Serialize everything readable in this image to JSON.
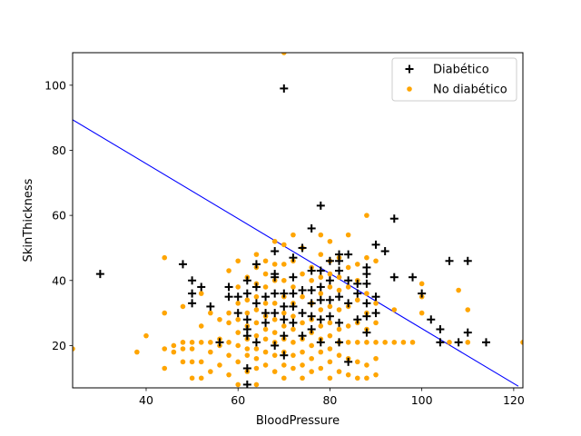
{
  "chart_data": {
    "type": "scatter",
    "title": "",
    "xlabel": "BloodPressure",
    "ylabel": "SkinThickness",
    "xlim": [
      24,
      122
    ],
    "ylim": [
      7,
      110
    ],
    "x_ticks": [
      40,
      60,
      80,
      100,
      120
    ],
    "y_ticks": [
      20,
      40,
      60,
      80,
      100
    ],
    "grid": false,
    "legend_position": "top-right",
    "decision_line": {
      "color": "#0000ff",
      "points": [
        [
          24,
          89.4
        ],
        [
          121,
          7.5
        ]
      ]
    },
    "series": [
      {
        "name": "Diabético",
        "marker": "plus",
        "color": "#000000",
        "points": [
          [
            30,
            42
          ],
          [
            48,
            45
          ],
          [
            50,
            40
          ],
          [
            50,
            36
          ],
          [
            50,
            33
          ],
          [
            52,
            38
          ],
          [
            54,
            32
          ],
          [
            56,
            21
          ],
          [
            58,
            38
          ],
          [
            58,
            35
          ],
          [
            60,
            30
          ],
          [
            60,
            35
          ],
          [
            62,
            40
          ],
          [
            62,
            36
          ],
          [
            62,
            28
          ],
          [
            62,
            25
          ],
          [
            62,
            23
          ],
          [
            62,
            13
          ],
          [
            62,
            8
          ],
          [
            64,
            45
          ],
          [
            64,
            38
          ],
          [
            64,
            33
          ],
          [
            64,
            21
          ],
          [
            66,
            35
          ],
          [
            66,
            30
          ],
          [
            66,
            27
          ],
          [
            68,
            49
          ],
          [
            68,
            42
          ],
          [
            68,
            41
          ],
          [
            68,
            36
          ],
          [
            68,
            30
          ],
          [
            68,
            20
          ],
          [
            70,
            99
          ],
          [
            70,
            36
          ],
          [
            70,
            32
          ],
          [
            70,
            28
          ],
          [
            70,
            23
          ],
          [
            70,
            17
          ],
          [
            72,
            47
          ],
          [
            72,
            41
          ],
          [
            72,
            36
          ],
          [
            72,
            32
          ],
          [
            72,
            27
          ],
          [
            74,
            50
          ],
          [
            74,
            37
          ],
          [
            74,
            30
          ],
          [
            74,
            23
          ],
          [
            76,
            56
          ],
          [
            76,
            43
          ],
          [
            76,
            37
          ],
          [
            76,
            33
          ],
          [
            76,
            29
          ],
          [
            76,
            25
          ],
          [
            78,
            63
          ],
          [
            78,
            43
          ],
          [
            78,
            38
          ],
          [
            78,
            34
          ],
          [
            78,
            28
          ],
          [
            78,
            21
          ],
          [
            80,
            46
          ],
          [
            80,
            40
          ],
          [
            80,
            34
          ],
          [
            80,
            29
          ],
          [
            82,
            48
          ],
          [
            82,
            46
          ],
          [
            82,
            43
          ],
          [
            82,
            35
          ],
          [
            82,
            27
          ],
          [
            82,
            21
          ],
          [
            84,
            48
          ],
          [
            84,
            40
          ],
          [
            84,
            33
          ],
          [
            84,
            15
          ],
          [
            86,
            39
          ],
          [
            86,
            36
          ],
          [
            86,
            28
          ],
          [
            88,
            44
          ],
          [
            88,
            42
          ],
          [
            88,
            39
          ],
          [
            88,
            33
          ],
          [
            88,
            29
          ],
          [
            88,
            24
          ],
          [
            90,
            51
          ],
          [
            90,
            35
          ],
          [
            90,
            30
          ],
          [
            92,
            49
          ],
          [
            94,
            59
          ],
          [
            94,
            41
          ],
          [
            98,
            41
          ],
          [
            100,
            36
          ],
          [
            102,
            28
          ],
          [
            104,
            25
          ],
          [
            104,
            21
          ],
          [
            106,
            46
          ],
          [
            108,
            21
          ],
          [
            110,
            46
          ],
          [
            110,
            24
          ],
          [
            114,
            21
          ]
        ]
      },
      {
        "name": "No diabético",
        "marker": "circle",
        "color": "#ffa500",
        "points": [
          [
            24,
            19
          ],
          [
            38,
            18
          ],
          [
            40,
            23
          ],
          [
            44,
            47
          ],
          [
            44,
            30
          ],
          [
            44,
            19
          ],
          [
            44,
            13
          ],
          [
            46,
            20
          ],
          [
            46,
            18
          ],
          [
            48,
            21
          ],
          [
            48,
            19
          ],
          [
            48,
            15
          ],
          [
            48,
            32
          ],
          [
            50,
            21
          ],
          [
            50,
            19
          ],
          [
            50,
            15
          ],
          [
            50,
            10
          ],
          [
            52,
            36
          ],
          [
            52,
            26
          ],
          [
            52,
            21
          ],
          [
            52,
            15
          ],
          [
            52,
            10
          ],
          [
            54,
            21
          ],
          [
            54,
            18
          ],
          [
            54,
            12
          ],
          [
            54,
            30
          ],
          [
            56,
            28
          ],
          [
            56,
            22
          ],
          [
            56,
            20
          ],
          [
            56,
            14
          ],
          [
            58,
            43
          ],
          [
            58,
            30
          ],
          [
            58,
            27
          ],
          [
            58,
            21
          ],
          [
            58,
            17
          ],
          [
            58,
            11
          ],
          [
            60,
            46
          ],
          [
            60,
            38
          ],
          [
            60,
            33
          ],
          [
            60,
            28
          ],
          [
            60,
            24
          ],
          [
            60,
            20
          ],
          [
            60,
            15
          ],
          [
            60,
            8
          ],
          [
            62,
            41
          ],
          [
            62,
            34
          ],
          [
            62,
            30
          ],
          [
            62,
            26
          ],
          [
            62,
            22
          ],
          [
            62,
            19
          ],
          [
            62,
            17
          ],
          [
            62,
            12
          ],
          [
            64,
            48
          ],
          [
            64,
            44
          ],
          [
            64,
            39
          ],
          [
            64,
            35
          ],
          [
            64,
            31
          ],
          [
            64,
            27
          ],
          [
            64,
            23
          ],
          [
            64,
            19
          ],
          [
            64,
            16
          ],
          [
            64,
            13
          ],
          [
            64,
            8
          ],
          [
            66,
            46
          ],
          [
            66,
            42
          ],
          [
            66,
            38
          ],
          [
            66,
            33
          ],
          [
            66,
            29
          ],
          [
            66,
            25
          ],
          [
            66,
            22
          ],
          [
            66,
            18
          ],
          [
            66,
            14
          ],
          [
            68,
            52
          ],
          [
            68,
            45
          ],
          [
            68,
            40
          ],
          [
            68,
            33
          ],
          [
            68,
            28
          ],
          [
            68,
            24
          ],
          [
            68,
            21
          ],
          [
            68,
            17
          ],
          [
            68,
            12
          ],
          [
            70,
            110
          ],
          [
            70,
            51
          ],
          [
            70,
            45
          ],
          [
            70,
            40
          ],
          [
            70,
            35
          ],
          [
            70,
            30
          ],
          [
            70,
            26
          ],
          [
            70,
            22
          ],
          [
            70,
            18
          ],
          [
            70,
            14
          ],
          [
            70,
            10
          ],
          [
            72,
            54
          ],
          [
            72,
            46
          ],
          [
            72,
            38
          ],
          [
            72,
            33
          ],
          [
            72,
            29
          ],
          [
            72,
            25
          ],
          [
            72,
            21
          ],
          [
            72,
            17
          ],
          [
            72,
            13
          ],
          [
            74,
            50
          ],
          [
            74,
            42
          ],
          [
            74,
            35
          ],
          [
            74,
            27
          ],
          [
            74,
            22
          ],
          [
            74,
            18
          ],
          [
            74,
            14
          ],
          [
            74,
            10
          ],
          [
            76,
            44
          ],
          [
            76,
            40
          ],
          [
            76,
            33
          ],
          [
            76,
            28
          ],
          [
            76,
            24
          ],
          [
            76,
            20
          ],
          [
            76,
            16
          ],
          [
            76,
            12
          ],
          [
            78,
            54
          ],
          [
            78,
            48
          ],
          [
            78,
            41
          ],
          [
            78,
            36
          ],
          [
            78,
            31
          ],
          [
            78,
            26
          ],
          [
            78,
            22
          ],
          [
            78,
            18
          ],
          [
            78,
            13
          ],
          [
            80,
            52
          ],
          [
            80,
            46
          ],
          [
            80,
            42
          ],
          [
            80,
            38
          ],
          [
            80,
            32
          ],
          [
            80,
            27
          ],
          [
            80,
            23
          ],
          [
            80,
            19
          ],
          [
            80,
            15
          ],
          [
            80,
            10
          ],
          [
            82,
            47
          ],
          [
            82,
            41
          ],
          [
            82,
            37
          ],
          [
            82,
            31
          ],
          [
            82,
            25
          ],
          [
            82,
            21
          ],
          [
            82,
            17
          ],
          [
            82,
            12
          ],
          [
            84,
            54
          ],
          [
            84,
            44
          ],
          [
            84,
            38
          ],
          [
            84,
            32
          ],
          [
            84,
            26
          ],
          [
            84,
            21
          ],
          [
            84,
            16
          ],
          [
            84,
            11
          ],
          [
            86,
            45
          ],
          [
            86,
            40
          ],
          [
            86,
            34
          ],
          [
            86,
            27
          ],
          [
            86,
            21
          ],
          [
            86,
            15
          ],
          [
            86,
            10
          ],
          [
            88,
            60
          ],
          [
            88,
            47
          ],
          [
            88,
            36
          ],
          [
            88,
            30
          ],
          [
            88,
            25
          ],
          [
            88,
            21
          ],
          [
            88,
            14
          ],
          [
            88,
            10
          ],
          [
            90,
            46
          ],
          [
            90,
            33
          ],
          [
            90,
            27
          ],
          [
            90,
            21
          ],
          [
            90,
            16
          ],
          [
            90,
            11
          ],
          [
            92,
            21
          ],
          [
            94,
            31
          ],
          [
            94,
            21
          ],
          [
            96,
            21
          ],
          [
            98,
            21
          ],
          [
            100,
            39
          ],
          [
            100,
            35
          ],
          [
            100,
            30
          ],
          [
            106,
            21
          ],
          [
            108,
            37
          ],
          [
            110,
            31
          ],
          [
            110,
            21
          ],
          [
            122,
            21
          ]
        ]
      }
    ]
  }
}
